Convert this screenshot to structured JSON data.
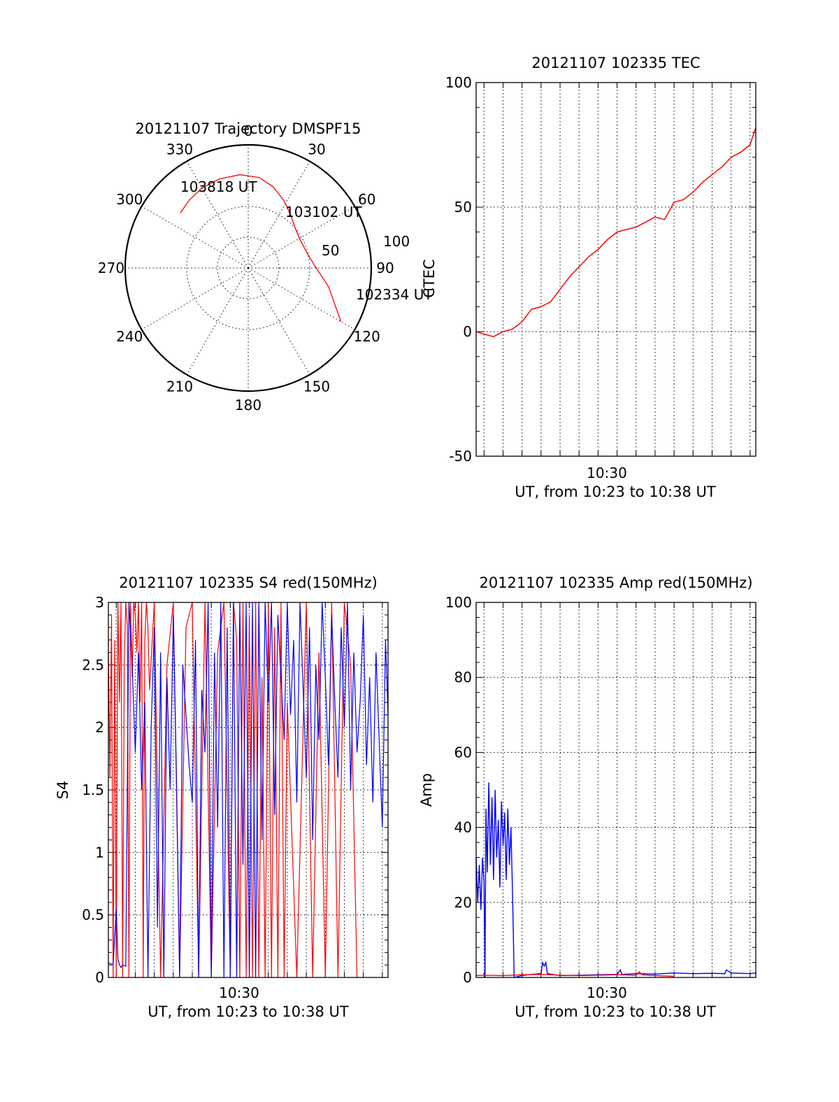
{
  "colors": {
    "red": "#ff0000",
    "blue": "#0000ff",
    "axis": "#000000"
  },
  "chart_data": [
    {
      "id": "trajectory",
      "type": "polar",
      "title": "20121107 Trajectory DMSPF15",
      "angle_labels": [
        "0",
        "30",
        "60",
        "90",
        "120",
        "150",
        "180",
        "210",
        "240",
        "270",
        "300",
        "330"
      ],
      "radial_tick_labels": [
        "50",
        "100"
      ],
      "elevation_range": [
        0,
        100
      ],
      "series": [
        {
          "color": "#ff0000",
          "points": [
            [
              120,
              13
            ],
            [
              103,
              33
            ],
            [
              88,
              46
            ],
            [
              74,
              51
            ],
            [
              62,
              52
            ],
            [
              50,
              50
            ],
            [
              39,
              45
            ],
            [
              28,
              38
            ],
            [
              17,
              31
            ],
            [
              7,
              26
            ],
            [
              -5,
              24
            ],
            [
              -18,
              24
            ],
            [
              -30,
              25
            ],
            [
              -41,
              27
            ],
            [
              -51,
              29
            ]
          ]
        }
      ],
      "annotations": [
        {
          "text": "103818 UT",
          "az": -51,
          "el": 29
        },
        {
          "text": "103102 UT",
          "az": 62,
          "el": 52
        },
        {
          "text": "102334 UT",
          "az": 120,
          "el": 13
        }
      ]
    },
    {
      "id": "tec",
      "type": "line",
      "title": "20121107 102335 TEC",
      "ylabel": "CTEC",
      "xlabel": "UT, from 10:23 to 10:38 UT",
      "xtick_labels": [
        "10:30"
      ],
      "xlim": [
        "10:23:35",
        "10:38:18"
      ],
      "ylim": [
        -50,
        100
      ],
      "yticks": [
        -50,
        0,
        50,
        100
      ],
      "series": [
        {
          "color": "#ff0000",
          "x": [
            "10:23:35",
            "10:24:00",
            "10:24:30",
            "10:25:00",
            "10:25:30",
            "10:26:00",
            "10:26:30",
            "10:27:00",
            "10:27:30",
            "10:28:00",
            "10:28:30",
            "10:29:00",
            "10:29:30",
            "10:30:00",
            "10:30:30",
            "10:31:00",
            "10:31:30",
            "10:32:00",
            "10:32:30",
            "10:33:00",
            "10:33:30",
            "10:34:00",
            "10:34:30",
            "10:35:00",
            "10:35:30",
            "10:36:00",
            "10:36:30",
            "10:37:00",
            "10:37:30",
            "10:38:00",
            "10:38:18"
          ],
          "values": [
            0,
            -1,
            -2,
            0,
            1,
            4,
            9,
            10,
            12,
            17,
            22,
            26,
            30,
            33,
            37,
            40,
            41,
            42,
            44,
            46,
            45,
            52,
            53,
            56,
            60,
            63,
            66,
            70,
            72,
            75,
            82
          ]
        }
      ]
    },
    {
      "id": "s4",
      "type": "line",
      "title": "20121107 102335 S4 red(150MHz)",
      "ylabel": "S4",
      "xlabel": "UT, from 10:23 to 10:38 UT",
      "xtick_labels": [
        "10:30"
      ],
      "xlim": [
        "10:23:35",
        "10:38:18"
      ],
      "ylim": [
        0,
        3
      ],
      "yticks": [
        "0",
        "0.5",
        "1",
        "1.5",
        "2",
        "2.5",
        "3"
      ],
      "series": [
        {
          "color": "#ff0000",
          "x": [
            "10:23:35",
            "10:23:40",
            "10:23:45",
            "10:23:50",
            "10:23:55",
            "10:24:00",
            "10:24:05",
            "10:24:10",
            "10:24:15",
            "10:24:20",
            "10:24:25",
            "10:24:30",
            "10:24:35",
            "10:24:40",
            "10:24:45",
            "10:24:50",
            "10:24:55",
            "10:25:00",
            "10:25:05",
            "10:25:10",
            "10:25:15",
            "10:25:20",
            "10:25:25",
            "10:25:30",
            "10:25:35",
            "10:25:40",
            "10:25:45",
            "10:26:00",
            "10:26:20",
            "10:26:40",
            "10:27:00",
            "10:27:20",
            "10:27:40",
            "10:28:00",
            "10:28:20",
            "10:28:40",
            "10:29:00",
            "10:29:20",
            "10:29:40",
            "10:30:00",
            "10:30:10",
            "10:30:20",
            "10:30:30",
            "10:30:40",
            "10:30:50",
            "10:31:00",
            "10:31:10",
            "10:31:20",
            "10:31:30",
            "10:31:40",
            "10:31:50",
            "10:32:00",
            "10:32:10",
            "10:32:20",
            "10:32:30",
            "10:32:40",
            "10:32:50",
            "10:33:00",
            "10:33:30",
            "10:34:00",
            "10:34:20",
            "10:34:40",
            "10:35:00",
            "10:35:20",
            "10:35:40",
            "10:36:00",
            "10:36:20",
            "10:36:40"
          ],
          "values": [
            2.6,
            1.6,
            2.9,
            0,
            2.7,
            0,
            3,
            2.2,
            3,
            0,
            2.5,
            3,
            2.8,
            0,
            3,
            2.4,
            3,
            2.9,
            2.6,
            3,
            2.2,
            3,
            0,
            2.7,
            3,
            2.8,
            2.3,
            3,
            0,
            2.5,
            3,
            0,
            2.8,
            3,
            0,
            3,
            0,
            2.6,
            3,
            0,
            3,
            2.7,
            0,
            3,
            0,
            2.9,
            0,
            3,
            0,
            2.4,
            0,
            3,
            0,
            2.8,
            0,
            3,
            0,
            2.2,
            0,
            3,
            0,
            2.6,
            0,
            3,
            0,
            3,
            2.5,
            0
          ]
        },
        {
          "color": "#0000ff",
          "x": [
            "10:23:35",
            "10:23:50",
            "10:24:00",
            "10:24:05",
            "10:24:10",
            "10:24:15",
            "10:24:20",
            "10:24:30",
            "10:24:40",
            "10:24:50",
            "10:25:00",
            "10:25:10",
            "10:25:20",
            "10:25:30",
            "10:25:40",
            "10:25:50",
            "10:26:00",
            "10:26:10",
            "10:26:20",
            "10:26:30",
            "10:26:40",
            "10:26:50",
            "10:27:00",
            "10:27:10",
            "10:27:20",
            "10:27:30",
            "10:27:40",
            "10:27:50",
            "10:28:00",
            "10:28:10",
            "10:28:20",
            "10:28:30",
            "10:28:40",
            "10:28:50",
            "10:29:00",
            "10:29:10",
            "10:29:20",
            "10:29:30",
            "10:29:40",
            "10:29:50",
            "10:30:00",
            "10:30:10",
            "10:30:20",
            "10:30:30",
            "10:30:40",
            "10:30:50",
            "10:31:00",
            "10:31:10",
            "10:31:20",
            "10:31:30",
            "10:31:40",
            "10:31:50",
            "10:32:00",
            "10:32:10",
            "10:32:20",
            "10:32:30",
            "10:32:40",
            "10:32:50",
            "10:33:00",
            "10:33:10",
            "10:33:20",
            "10:33:30",
            "10:33:40",
            "10:33:50",
            "10:34:00",
            "10:34:10",
            "10:34:20",
            "10:34:30",
            "10:34:40",
            "10:34:50",
            "10:35:00",
            "10:35:10",
            "10:35:20",
            "10:35:30",
            "10:35:40",
            "10:35:50",
            "10:36:00",
            "10:36:10",
            "10:36:20",
            "10:36:30",
            "10:36:40",
            "10:36:50",
            "10:37:00",
            "10:37:10",
            "10:37:20",
            "10:37:30",
            "10:37:40",
            "10:37:50",
            "10:38:00",
            "10:38:10",
            "10:38:18"
          ],
          "values": [
            0.12,
            0.1,
            0.55,
            0.15,
            0.1,
            0.08,
            0.1,
            0.09,
            3,
            2.5,
            1.8,
            2.6,
            1.5,
            2.2,
            0,
            2,
            2.8,
            0.4,
            2.6,
            0,
            2.4,
            1.5,
            2.9,
            1.6,
            0,
            2.5,
            2.1,
            1.7,
            1.4,
            2.7,
            0,
            2.3,
            1.8,
            3,
            0,
            2.6,
            1.2,
            3,
            0,
            2.8,
            0,
            3,
            0,
            3,
            0.9,
            3,
            0,
            3,
            0,
            3,
            1.1,
            3,
            2.2,
            3,
            1.3,
            2.9,
            2.4,
            1.9,
            3,
            2.1,
            2.7,
            1.4,
            3,
            2.3,
            1.6,
            2.8,
            1.1,
            2.5,
            1.9,
            3,
            2.4,
            1.7,
            2.9,
            2.2,
            1.6,
            2.8,
            2.0,
            3,
            1.5,
            2.6,
            1.8,
            2.2,
            2.9,
            1.7,
            2.4,
            1.4,
            2.6,
            1.9,
            1.2,
            2.7,
            2.1
          ]
        }
      ]
    },
    {
      "id": "amp",
      "type": "line",
      "title": "20121107 102335 Amp red(150MHz)",
      "ylabel": "Amp",
      "xlabel": "UT, from 10:23 to 10:38 UT",
      "xtick_labels": [
        "10:30"
      ],
      "xlim": [
        "10:23:35",
        "10:38:18"
      ],
      "ylim": [
        0,
        100
      ],
      "yticks": [
        0,
        20,
        40,
        60,
        80,
        100
      ],
      "series": [
        {
          "color": "#0000ff",
          "x": [
            "10:23:35",
            "10:23:40",
            "10:23:45",
            "10:23:50",
            "10:23:55",
            "10:24:00",
            "10:24:03",
            "10:24:06",
            "10:24:10",
            "10:24:15",
            "10:24:20",
            "10:24:25",
            "10:24:30",
            "10:24:35",
            "10:24:40",
            "10:24:45",
            "10:24:50",
            "10:24:55",
            "10:25:00",
            "10:25:05",
            "10:25:10",
            "10:25:15",
            "10:25:20",
            "10:25:25",
            "10:25:30",
            "10:25:35",
            "10:26:00",
            "10:26:30",
            "10:27:00",
            "10:27:05",
            "10:27:10",
            "10:27:15",
            "10:27:20",
            "10:28:00",
            "10:29:00",
            "10:30:00",
            "10:31:00",
            "10:31:10",
            "10:31:15",
            "10:32:00",
            "10:33:00",
            "10:34:00",
            "10:35:00",
            "10:36:00",
            "10:36:40",
            "10:36:45",
            "10:37:00",
            "10:38:00",
            "10:38:18"
          ],
          "values": [
            32,
            20,
            30,
            18,
            32,
            25,
            0,
            45,
            28,
            52,
            30,
            48,
            26,
            50,
            32,
            42,
            24,
            47,
            35,
            44,
            26,
            45,
            30,
            40,
            22,
            0,
            0.5,
            0.8,
            1,
            4,
            3,
            4,
            1,
            0.5,
            0.6,
            0.7,
            0.8,
            2,
            0.8,
            1,
            0.9,
            1.2,
            1,
            1.1,
            1,
            2,
            1.2,
            1,
            1.2
          ]
        },
        {
          "color": "#ff0000",
          "x": [
            "10:23:35",
            "10:24:00",
            "10:25:00",
            "10:26:00",
            "10:27:00",
            "10:28:00",
            "10:29:00",
            "10:30:00",
            "10:31:00",
            "10:32:00",
            "10:32:10",
            "10:32:20",
            "10:33:00",
            "10:34:00"
          ],
          "values": [
            0.5,
            0.6,
            0.5,
            0.7,
            0.8,
            0.6,
            0.5,
            0.6,
            0.7,
            0.6,
            1.5,
            0.7,
            0.5,
            0.3
          ]
        }
      ]
    }
  ]
}
